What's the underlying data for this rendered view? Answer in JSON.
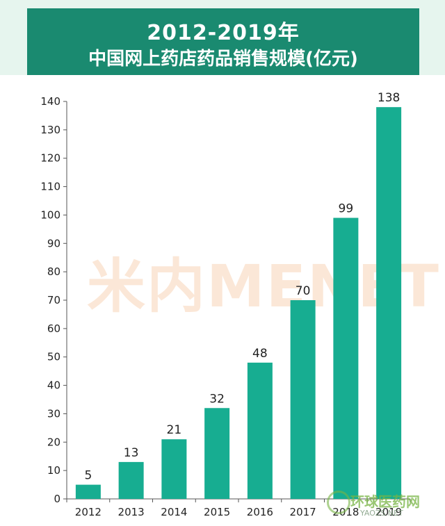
{
  "header": {
    "title_line1": "2012-2019年",
    "title_line2": "中国网上药店药品销售规模(亿元)"
  },
  "watermarks": {
    "main": "米内MENET",
    "logo_text": "环球医药网",
    "logo_sub": "YAOZS.NET"
  },
  "colors": {
    "banner": "#1a8a70",
    "bar": "#17ad91",
    "background": "#e6f5ee"
  },
  "chart_data": {
    "type": "bar",
    "title": "2012-2019年 中国网上药店药品销售规模(亿元)",
    "categories": [
      "2012",
      "2013",
      "2014",
      "2015",
      "2016",
      "2017",
      "2018",
      "2019"
    ],
    "values": [
      5,
      13,
      21,
      32,
      48,
      70,
      99,
      138
    ],
    "xlabel": "",
    "ylabel": "",
    "ylim": [
      0,
      140
    ],
    "yticks": [
      0,
      10,
      20,
      30,
      40,
      50,
      60,
      70,
      80,
      90,
      100,
      110,
      120,
      130,
      140
    ],
    "grid": false,
    "legend": "none",
    "data_labels": true
  }
}
